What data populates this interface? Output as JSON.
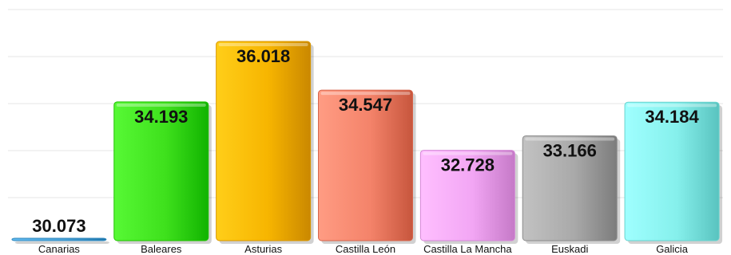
{
  "chart_data": {
    "type": "bar",
    "categories": [
      "Canarias",
      "Baleares",
      "Asturias",
      "Castilla León",
      "Castilla La Mancha",
      "Euskadi",
      "Galicia"
    ],
    "values": [
      30.073,
      34.193,
      36.018,
      34.547,
      32.728,
      33.166,
      34.184
    ],
    "value_labels": [
      "30.073",
      "34.193",
      "36.018",
      "34.547",
      "32.728",
      "33.166",
      "34.184"
    ],
    "colors": [
      "#4aa3d9",
      "#3ee01c",
      "#f7b500",
      "#f4836a",
      "#f2a6f4",
      "#a9a9a9",
      "#86f0ec"
    ],
    "title": "",
    "xlabel": "",
    "ylabel": "",
    "ylim": [
      30,
      36.5
    ],
    "grid": true,
    "legend": "none"
  }
}
